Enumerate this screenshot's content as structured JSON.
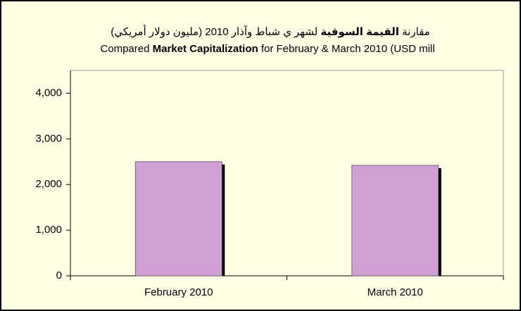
{
  "chart_data": {
    "type": "bar",
    "title_ar": [
      "مقارنة ",
      "القيمة السوقية",
      " لشهر ي  شباط  وآذار 2010 (مليون دولار أمريكي)"
    ],
    "title_en": [
      "Compared ",
      "Market Capitalization",
      " for  February & March  2010 (USD mill"
    ],
    "categories": [
      "February 2010",
      "March 2010"
    ],
    "values": [
      2500,
      2420
    ],
    "color": "#d09fd4",
    "ylim": [
      0,
      4500
    ],
    "yticks": [
      0,
      {
        "value": 1000,
        "label": "1,000"
      },
      {
        "value": 2000,
        "label": "2,000"
      },
      {
        "value": 3000,
        "label": "3,000"
      },
      {
        "value": 4000,
        "label": "4,000"
      }
    ],
    "grid": false
  }
}
